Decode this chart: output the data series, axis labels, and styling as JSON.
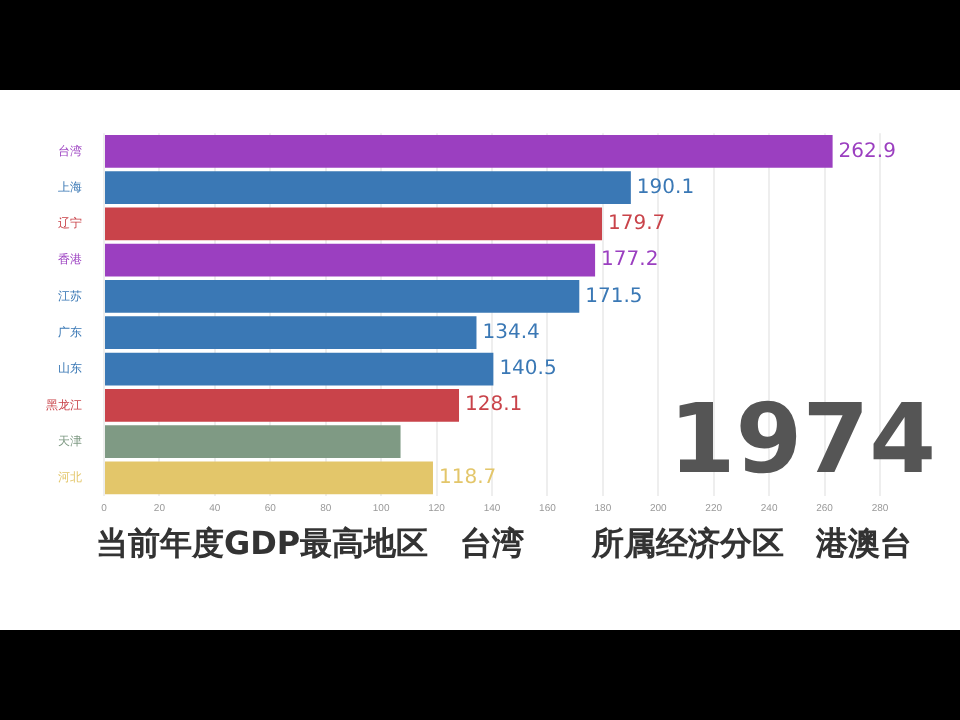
{
  "chart_data": {
    "type": "bar",
    "orientation": "horizontal",
    "categories": [
      "台湾",
      "上海",
      "辽宁",
      "香港",
      "江苏",
      "广东",
      "山东",
      "黑龙江",
      "天津",
      "河北"
    ],
    "values": [
      262.9,
      190.1,
      179.7,
      177.2,
      171.5,
      134.4,
      140.5,
      128.1,
      107,
      118.7
    ],
    "colors": [
      "#9b3fc0",
      "#3a78b5",
      "#c9434a",
      "#9b3fc0",
      "#3a78b5",
      "#3a78b5",
      "#3a78b5",
      "#c9434a",
      "#7f9a84",
      "#e3c66a"
    ],
    "value_labels": [
      "262.9",
      "190.1",
      "179.7",
      "177.2",
      "171.5",
      "134.4",
      "140.5",
      "128.1",
      null,
      "118.7"
    ],
    "xlim": [
      0,
      280
    ],
    "xticks": [
      0,
      20,
      40,
      60,
      80,
      100,
      120,
      140,
      160,
      180,
      200,
      220,
      240,
      260,
      280
    ],
    "grid": "x",
    "legend": false,
    "annotations": [
      "1974",
      "当前年度GDP最高地区　台湾",
      "所属经济分区　港澳台"
    ]
  }
}
